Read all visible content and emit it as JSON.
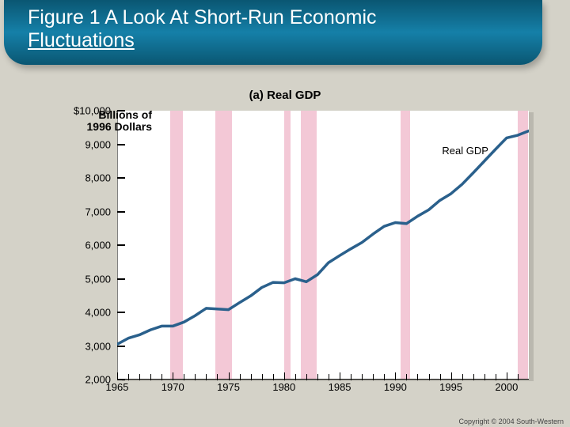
{
  "title_line1": "Figure 1 A Look At Short-Run Economic",
  "title_line2": "Fluctuations",
  "subtitle": "(a) Real GDP",
  "y_axis": {
    "label_line1": "Billions of",
    "label_line2": "1996 Dollars",
    "min": 2000,
    "max": 10000,
    "ticks": [
      {
        "v": 2000,
        "label": "2,000"
      },
      {
        "v": 3000,
        "label": "3,000"
      },
      {
        "v": 4000,
        "label": "4,000"
      },
      {
        "v": 5000,
        "label": "5,000"
      },
      {
        "v": 6000,
        "label": "6,000"
      },
      {
        "v": 7000,
        "label": "7,000"
      },
      {
        "v": 8000,
        "label": "8,000"
      },
      {
        "v": 9000,
        "label": "9,000"
      },
      {
        "v": 10000,
        "label": "$10,000"
      }
    ]
  },
  "x_axis": {
    "min": 1965,
    "max": 2002,
    "label_years": [
      1965,
      1970,
      1975,
      1980,
      1985,
      1990,
      1995,
      2000
    ],
    "minor_tick_years": [
      1966,
      1967,
      1968,
      1969,
      1971,
      1972,
      1973,
      1974,
      1976,
      1977,
      1978,
      1979,
      1981,
      1982,
      1983,
      1984,
      1986,
      1987,
      1988,
      1989,
      1991,
      1992,
      1993,
      1994,
      1996,
      1997,
      1998,
      1999,
      2001
    ]
  },
  "recession_bands": [
    {
      "start": 1969.8,
      "end": 1970.9
    },
    {
      "start": 1973.8,
      "end": 1975.3
    },
    {
      "start": 1980.0,
      "end": 1980.6
    },
    {
      "start": 1981.5,
      "end": 1982.9
    },
    {
      "start": 1990.5,
      "end": 1991.3
    },
    {
      "start": 2001.0,
      "end": 2001.9
    }
  ],
  "series": {
    "name": "Real GDP",
    "label_x": 1994.2,
    "label_y": 8800,
    "color": "#2a608c",
    "line_width": 3.5,
    "data": [
      {
        "x": 1965,
        "y": 3050
      },
      {
        "x": 1966,
        "y": 3230
      },
      {
        "x": 1967,
        "y": 3330
      },
      {
        "x": 1968,
        "y": 3480
      },
      {
        "x": 1969,
        "y": 3590
      },
      {
        "x": 1970,
        "y": 3590
      },
      {
        "x": 1971,
        "y": 3710
      },
      {
        "x": 1972,
        "y": 3900
      },
      {
        "x": 1973,
        "y": 4120
      },
      {
        "x": 1974,
        "y": 4100
      },
      {
        "x": 1975,
        "y": 4080
      },
      {
        "x": 1976,
        "y": 4290
      },
      {
        "x": 1977,
        "y": 4490
      },
      {
        "x": 1978,
        "y": 4740
      },
      {
        "x": 1979,
        "y": 4890
      },
      {
        "x": 1980,
        "y": 4880
      },
      {
        "x": 1981,
        "y": 5000
      },
      {
        "x": 1982,
        "y": 4910
      },
      {
        "x": 1983,
        "y": 5120
      },
      {
        "x": 1984,
        "y": 5480
      },
      {
        "x": 1985,
        "y": 5690
      },
      {
        "x": 1986,
        "y": 5890
      },
      {
        "x": 1987,
        "y": 6080
      },
      {
        "x": 1988,
        "y": 6330
      },
      {
        "x": 1989,
        "y": 6560
      },
      {
        "x": 1990,
        "y": 6670
      },
      {
        "x": 1991,
        "y": 6640
      },
      {
        "x": 1992,
        "y": 6860
      },
      {
        "x": 1993,
        "y": 7050
      },
      {
        "x": 1994,
        "y": 7330
      },
      {
        "x": 1995,
        "y": 7530
      },
      {
        "x": 1996,
        "y": 7810
      },
      {
        "x": 1997,
        "y": 8150
      },
      {
        "x": 1998,
        "y": 8500
      },
      {
        "x": 1999,
        "y": 8850
      },
      {
        "x": 2000,
        "y": 9190
      },
      {
        "x": 2001,
        "y": 9270
      },
      {
        "x": 2002,
        "y": 9400
      }
    ]
  },
  "copyright": "Copyright © 2004  South-Western",
  "colors": {
    "banner_start": "#0a5672",
    "banner_mid": "#1580a8",
    "page_bg": "#d4d2c8",
    "chart_bg": "#ffffff",
    "recession": "#f3c8d6",
    "axis": "#000000"
  }
}
